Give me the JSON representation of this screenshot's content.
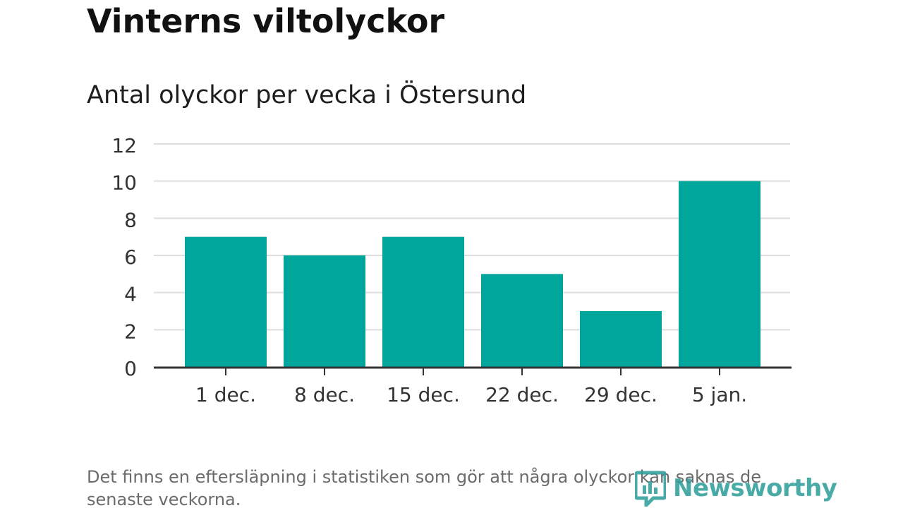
{
  "title": "Vinterns viltolyckor",
  "subtitle": "Antal olyckor per vecka i Östersund",
  "footnote": "Det finns en eftersläpning i statistiken som gör att några olyckor kan saknas de senaste veckorna.",
  "brand": {
    "name": "Newsworthy",
    "icon": "newsworthy-logo-icon",
    "color": "#2a9d9a"
  },
  "chart_data": {
    "type": "bar",
    "categories": [
      "1 dec.",
      "8 dec.",
      "15 dec.",
      "22 dec.",
      "29 dec.",
      "5 jan."
    ],
    "values": [
      7,
      6,
      7,
      5,
      3,
      10
    ],
    "ylim": [
      0,
      12
    ],
    "yticks": [
      0,
      2,
      4,
      6,
      8,
      10,
      12
    ],
    "grid": true,
    "bar_color": "#00a59b"
  }
}
